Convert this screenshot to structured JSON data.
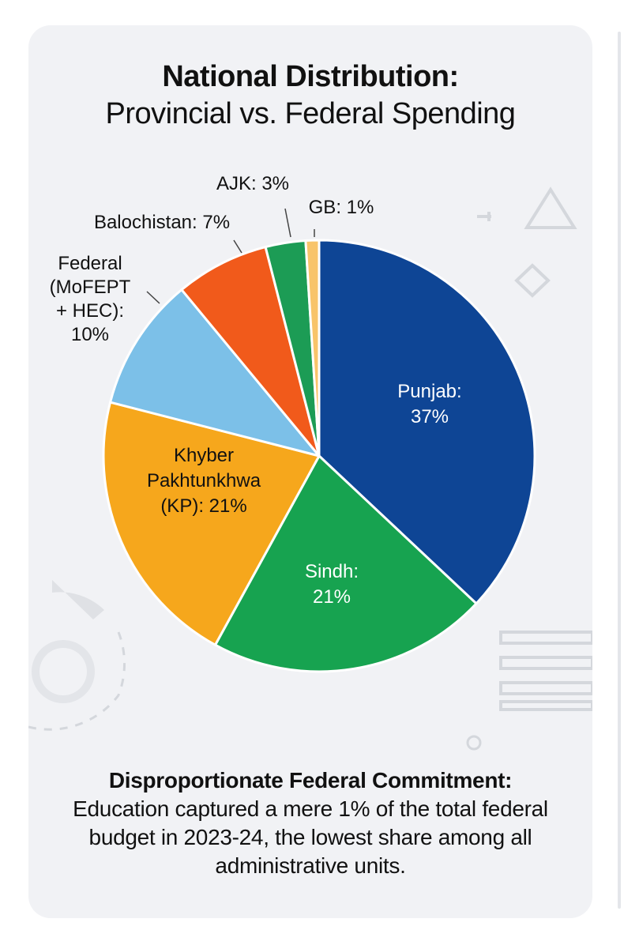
{
  "title": {
    "line1": "National Distribution:",
    "line2": "Provincial vs. Federal Spending"
  },
  "chart_data": {
    "type": "pie",
    "title": "National Distribution: Provincial vs. Federal Spending",
    "slices": [
      {
        "name": "Punjab",
        "value": 37,
        "color": "#0e4595",
        "labels": [
          "Punjab:",
          "37%"
        ],
        "label_color": "#ffffff",
        "label_mode": "inside"
      },
      {
        "name": "Sindh",
        "value": 21,
        "color": "#17a350",
        "labels": [
          "Sindh:",
          "21%"
        ],
        "label_color": "#ffffff",
        "label_mode": "inside"
      },
      {
        "name": "Khyber Pakhtunkhwa (KP)",
        "value": 21,
        "color": "#f6a71c",
        "labels": [
          "Khyber",
          "Pakhtunkhwa",
          "(KP): 21%"
        ],
        "label_color": "#111111",
        "label_mode": "inside"
      },
      {
        "name": "Federal (MoFEPT + HEC)",
        "value": 10,
        "color": "#7cc0e8",
        "labels": [
          "Federal",
          "(MoFEPT",
          "+ HEC):",
          "10%"
        ],
        "label_color": "#111111",
        "label_mode": "outside"
      },
      {
        "name": "Balochistan",
        "value": 7,
        "color": "#f15a1b",
        "labels": [
          "Balochistan: 7%"
        ],
        "label_color": "#111111",
        "label_mode": "outside"
      },
      {
        "name": "AJK",
        "value": 3,
        "color": "#1c9c55",
        "labels": [
          "AJK: 3%"
        ],
        "label_color": "#111111",
        "label_mode": "outside"
      },
      {
        "name": "GB",
        "value": 1,
        "color": "#f8c46a",
        "labels": [
          "GB: 1%"
        ],
        "label_color": "#111111",
        "label_mode": "outside"
      }
    ],
    "start_angle_deg": 0,
    "direction": "clockwise",
    "legend": "none"
  },
  "footer": {
    "heading": "Disproportionate Federal Commitment:",
    "body": "Education captured a mere 1% of the total federal budget in 2023-24, the lowest share among all administrative units."
  },
  "colors": {
    "card_background": "#f1f2f5",
    "decoration": "#d4d7dc",
    "slice_border": "#ffffff"
  },
  "icons": [
    "triangle-outline-icon",
    "diamond-outline-icon",
    "plus-mark-icon",
    "list-lines-icon",
    "circle-outline-icon",
    "gauge-icon"
  ]
}
